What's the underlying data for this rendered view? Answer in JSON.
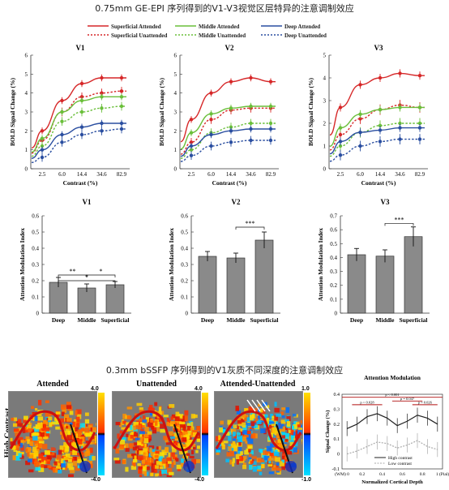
{
  "titles": {
    "top": "0.75mm GE-EPI 序列得到的V1-V3视觉区层特异的注意调制效应",
    "bottom": "0.3mm bSSFP 序列得到的V1灰质不同深度的注意调制效应"
  },
  "legend": {
    "items": [
      {
        "label": "Superficial Attended",
        "color": "#d62728",
        "dash": false
      },
      {
        "label": "Superficial Unattended",
        "color": "#d62728",
        "dash": true
      },
      {
        "label": "Middle Attended",
        "color": "#6abf3a",
        "dash": false
      },
      {
        "label": "Middle Unattended",
        "color": "#6abf3a",
        "dash": true
      },
      {
        "label": "Deep Attended",
        "color": "#2a4ea0",
        "dash": false
      },
      {
        "label": "Deep Unattended",
        "color": "#2a4ea0",
        "dash": true
      }
    ]
  },
  "chart_data": [
    {
      "type": "line",
      "title": "V1",
      "xlabel": "Contrast (%)",
      "ylabel": "BOLD Signal Change (%)",
      "categories": [
        "2.5",
        "6.0",
        "14.4",
        "34.6",
        "82.9"
      ],
      "ylim": [
        0,
        6
      ],
      "yticks": [
        "0",
        "1",
        "2",
        "3",
        "4",
        "5",
        "6"
      ],
      "series": [
        {
          "name": "Superficial Attended",
          "values": [
            2.0,
            3.6,
            4.5,
            4.8,
            4.8
          ]
        },
        {
          "name": "Superficial Unattended",
          "values": [
            1.5,
            3.0,
            3.8,
            4.0,
            4.1
          ]
        },
        {
          "name": "Middle Attended",
          "values": [
            1.6,
            3.0,
            3.6,
            3.8,
            3.8
          ]
        },
        {
          "name": "Middle Unattended",
          "values": [
            1.2,
            2.5,
            3.0,
            3.2,
            3.3
          ]
        },
        {
          "name": "Deep Attended",
          "values": [
            1.0,
            1.8,
            2.2,
            2.4,
            2.4
          ]
        },
        {
          "name": "Deep Unattended",
          "values": [
            0.6,
            1.4,
            1.8,
            2.0,
            2.1
          ]
        }
      ]
    },
    {
      "type": "line",
      "title": "V2",
      "xlabel": "Contrast (%)",
      "ylabel": "BOLD Signal Change (%)",
      "categories": [
        "2.5",
        "6.0",
        "14.4",
        "34.6",
        "82.9"
      ],
      "ylim": [
        0,
        6
      ],
      "yticks": [
        "0",
        "1",
        "2",
        "3",
        "4",
        "5",
        "6"
      ],
      "series": [
        {
          "name": "Superficial Attended",
          "values": [
            2.6,
            4.0,
            4.6,
            4.8,
            4.6
          ]
        },
        {
          "name": "Superficial Unattended",
          "values": [
            1.4,
            2.6,
            3.1,
            3.2,
            3.2
          ]
        },
        {
          "name": "Middle Attended",
          "values": [
            1.9,
            2.9,
            3.2,
            3.3,
            3.3
          ]
        },
        {
          "name": "Middle Unattended",
          "values": [
            1.0,
            1.9,
            2.2,
            2.4,
            2.4
          ]
        },
        {
          "name": "Deep Attended",
          "values": [
            1.2,
            1.8,
            2.0,
            2.1,
            2.1
          ]
        },
        {
          "name": "Deep Unattended",
          "values": [
            0.7,
            1.2,
            1.4,
            1.5,
            1.5
          ]
        }
      ]
    },
    {
      "type": "line",
      "title": "V3",
      "xlabel": "Contrast (%)",
      "ylabel": "BOLD Signal Change (%)",
      "categories": [
        "2.5",
        "6.0",
        "14.4",
        "34.6",
        "82.9"
      ],
      "ylim": [
        0,
        5
      ],
      "yticks": [
        "0",
        "1",
        "2",
        "3",
        "4",
        "5"
      ],
      "series": [
        {
          "name": "Superficial Attended",
          "values": [
            2.7,
            3.7,
            4.0,
            4.2,
            4.1
          ]
        },
        {
          "name": "Superficial Unattended",
          "values": [
            1.5,
            2.2,
            2.6,
            2.8,
            2.7
          ]
        },
        {
          "name": "Middle Attended",
          "values": [
            1.8,
            2.4,
            2.6,
            2.7,
            2.7
          ]
        },
        {
          "name": "Middle Unattended",
          "values": [
            1.0,
            1.6,
            1.9,
            2.0,
            2.0
          ]
        },
        {
          "name": "Deep Attended",
          "values": [
            1.2,
            1.6,
            1.7,
            1.8,
            1.8
          ]
        },
        {
          "name": "Deep Unattended",
          "values": [
            0.6,
            1.0,
            1.2,
            1.3,
            1.3
          ]
        }
      ]
    },
    {
      "type": "bar",
      "title": "V1",
      "ylabel": "Attention Modulation Index",
      "categories": [
        "Deep",
        "Middle",
        "Superficial"
      ],
      "values": [
        0.19,
        0.155,
        0.175
      ],
      "errors": [
        0.03,
        0.025,
        0.02
      ],
      "ylim": [
        0,
        0.6
      ],
      "yticks": [
        "0",
        "0.1",
        "0.2",
        "0.3",
        "0.4",
        "0.5",
        "0.6"
      ],
      "annotations": [
        "**",
        "*",
        "*"
      ]
    },
    {
      "type": "bar",
      "title": "V2",
      "ylabel": "Attention Modulation Index",
      "categories": [
        "Deep",
        "Middle",
        "Superficial"
      ],
      "values": [
        0.35,
        0.34,
        0.45
      ],
      "errors": [
        0.03,
        0.03,
        0.05
      ],
      "ylim": [
        0,
        0.6
      ],
      "yticks": [
        "0",
        "0.1",
        "0.2",
        "0.3",
        "0.4",
        "0.5",
        "0.6"
      ],
      "annotations": [
        "***"
      ]
    },
    {
      "type": "bar",
      "title": "V3",
      "ylabel": "Attention Modulation Index",
      "categories": [
        "Deep",
        "Middle",
        "Superficial"
      ],
      "values": [
        0.42,
        0.41,
        0.55
      ],
      "errors": [
        0.045,
        0.045,
        0.07
      ],
      "ylim": [
        0,
        0.7
      ],
      "yticks": [
        "0",
        "0.1",
        "0.2",
        "0.3",
        "0.4",
        "0.5",
        "0.6",
        "0.7"
      ],
      "annotations": [
        "***"
      ]
    },
    {
      "type": "line",
      "title": "Attention Modulation",
      "xlabel": "Normalized Cortical Depth",
      "ylabel": "Signal Change (%)",
      "x": [
        0,
        0.1,
        0.2,
        0.3,
        0.4,
        0.5,
        0.6,
        0.7,
        0.8,
        0.9
      ],
      "xticks": [
        "(WM) 0",
        "0.2",
        "0.4",
        "0.6",
        "0.8",
        "1 (Pial)"
      ],
      "ylim": [
        -0.1,
        0.4
      ],
      "yticks": [
        "-0.1",
        "0",
        "0.1",
        "0.2",
        "0.3",
        "0.4"
      ],
      "series": [
        {
          "name": "High contrast",
          "values": [
            0.17,
            0.2,
            0.25,
            0.27,
            0.24,
            0.19,
            0.22,
            0.26,
            0.24,
            0.2
          ]
        },
        {
          "name": "Low contrast",
          "values": [
            0.0,
            0.02,
            0.05,
            0.08,
            0.07,
            0.04,
            0.06,
            0.09,
            0.05,
            0.03
          ]
        }
      ],
      "annotations": [
        "p < 0.001",
        "p < 0.028",
        "p = 0.047",
        "p = 0.026"
      ]
    }
  ],
  "maps": {
    "row_label": "High Contrast",
    "panels": [
      {
        "title": "Attended",
        "scale_max": "4.0",
        "scale_min": "-4.0"
      },
      {
        "title": "Unattended",
        "scale_max": "4.0",
        "scale_min": "-4.0"
      },
      {
        "title": "Attended-Unattended",
        "scale_max": "1.0",
        "scale_min": "-1.0"
      }
    ]
  }
}
